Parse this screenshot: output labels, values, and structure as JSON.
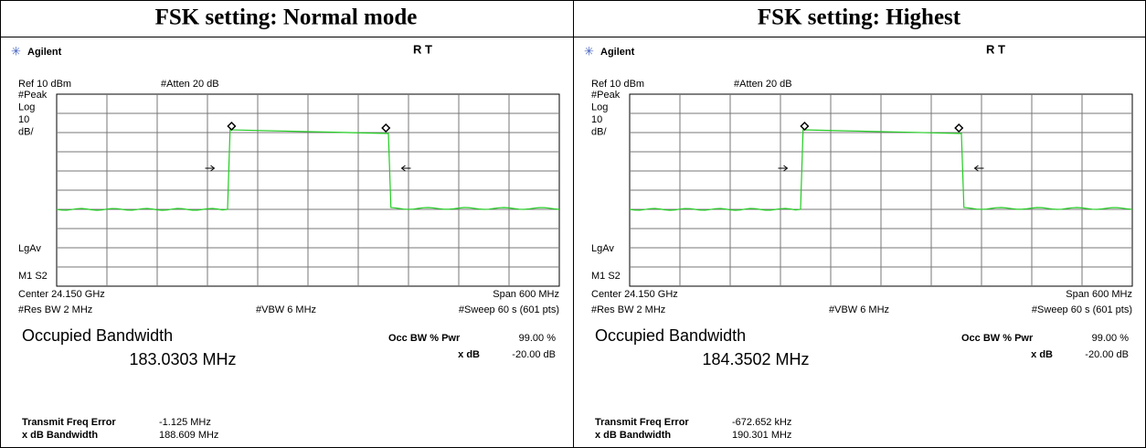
{
  "panels": [
    {
      "title": "FSK setting: Normal mode",
      "brand": "Agilent",
      "status": "R  T",
      "ref": "Ref 10 dBm",
      "atten": "#Atten 20 dB",
      "side_labels": [
        "#Peak",
        "Log",
        "10",
        "dB/"
      ],
      "lgav": "LgAv",
      "marker": "M1  S2",
      "center": "Center 24.150 GHz",
      "span": "Span 600 MHz",
      "rbw": "#Res BW 2 MHz",
      "vbw": "#VBW 6 MHz",
      "sweep": "#Sweep 60 s (601 pts)",
      "obw_label": "Occupied Bandwidth",
      "obw_value": "183.0303 MHz",
      "occ_label": "Occ BW % Pwr",
      "occ_value": "99.00 %",
      "xdb_label": "x dB",
      "xdb_value": "-20.00 dB",
      "tfe_label": "Transmit Freq Error",
      "tfe_value": "-1.125 MHz",
      "xbw_label": "x dB Bandwidth",
      "xbw_value": "188.609 MHz"
    },
    {
      "title": "FSK setting: Highest",
      "brand": "Agilent",
      "status": "R  T",
      "ref": "Ref 10 dBm",
      "atten": "#Atten 20 dB",
      "side_labels": [
        "#Peak",
        "Log",
        "10",
        "dB/"
      ],
      "lgav": "LgAv",
      "marker": "M1  S2",
      "center": "Center 24.150 GHz",
      "span": "Span 600 MHz",
      "rbw": "#Res BW 2 MHz",
      "vbw": "#VBW 6 MHz",
      "sweep": "#Sweep 60 s (601 pts)",
      "obw_label": "Occupied Bandwidth",
      "obw_value": "184.3502 MHz",
      "occ_label": "Occ BW % Pwr",
      "occ_value": "99.00 %",
      "xdb_label": "x dB",
      "xdb_value": "-20.00 dB",
      "tfe_label": "Transmit Freq Error",
      "tfe_value": "-672.652 kHz",
      "xbw_label": "x dB Bandwidth",
      "xbw_value": "190.301 MHz"
    }
  ]
}
